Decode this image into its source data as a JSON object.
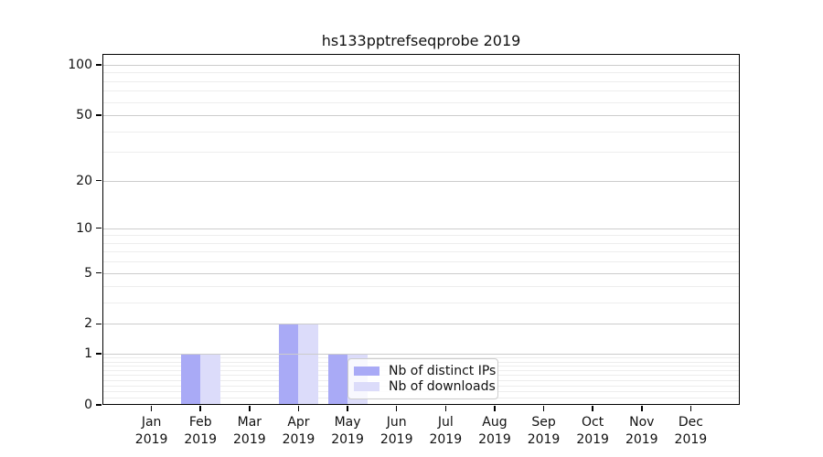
{
  "chart_data": {
    "type": "bar",
    "title": "hs133pptrefseqprobe 2019",
    "categories": [
      "Jan",
      "Feb",
      "Mar",
      "Apr",
      "May",
      "Jun",
      "Jul",
      "Aug",
      "Sep",
      "Oct",
      "Nov",
      "Dec"
    ],
    "year_label": "2019",
    "series": [
      {
        "name": "Nb of distinct IPs",
        "color": "#a9aaf6",
        "values": [
          0,
          1,
          0,
          2,
          1,
          0,
          0,
          0,
          0,
          0,
          0,
          0
        ]
      },
      {
        "name": "Nb of downloads",
        "color": "#dcdcfa",
        "values": [
          0,
          1,
          0,
          2,
          1,
          0,
          0,
          0,
          0,
          0,
          0,
          0
        ]
      }
    ],
    "yscale": "log1p",
    "ylim": [
      0,
      115
    ],
    "yticks": [
      0,
      1,
      2,
      5,
      10,
      20,
      50,
      100
    ],
    "yticks_minor": [
      0.1,
      0.2,
      0.3,
      0.4,
      0.5,
      0.6,
      0.7,
      0.8,
      0.9,
      3,
      4,
      6,
      7,
      8,
      9,
      30,
      40,
      60,
      70,
      80,
      90
    ],
    "grid": true,
    "legend_position": "inside-bottom-center",
    "colors": {
      "grid_major": "#cccccc",
      "grid_minor": "#ededed",
      "spine": "#000000",
      "background": "#ffffff"
    }
  }
}
